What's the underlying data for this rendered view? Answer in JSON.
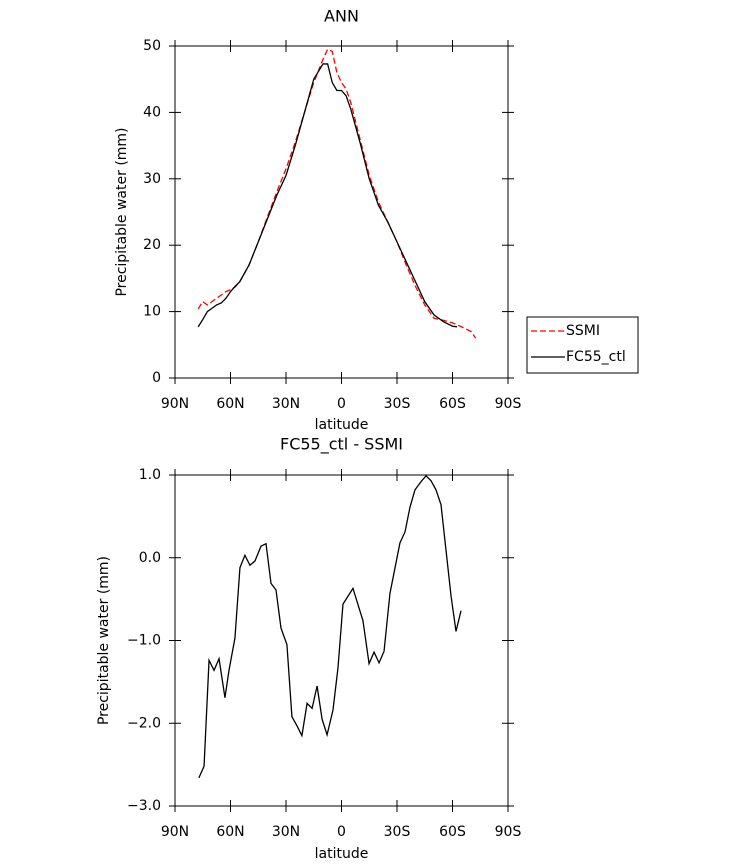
{
  "chart_data": [
    {
      "type": "line",
      "title": "ANN",
      "xlabel": "latitude",
      "ylabel": "Precipitable water (mm)",
      "xlim": [
        90,
        -90
      ],
      "ylim": [
        0,
        50
      ],
      "xticks": [
        {
          "value": 90,
          "label": "90N"
        },
        {
          "value": 60,
          "label": "60N"
        },
        {
          "value": 30,
          "label": "30N"
        },
        0,
        {
          "value": -30,
          "label": "30S"
        },
        {
          "value": -60,
          "label": "60S"
        },
        {
          "value": -90,
          "label": "90S"
        }
      ],
      "yticks": [
        0,
        10,
        20,
        30,
        40,
        50
      ],
      "legend": "right",
      "series": [
        {
          "name": "SSMI",
          "color": "#ff0000",
          "line_style": "dashed",
          "x": [
            77.5,
            75,
            72.5,
            70,
            67.5,
            65,
            62.5,
            60,
            57.5,
            55,
            50,
            45,
            40,
            35,
            30,
            25,
            20,
            15,
            10,
            7.5,
            5,
            2.5,
            0,
            -2.5,
            -5,
            -10,
            -15,
            -20,
            -25,
            -30,
            -35,
            -40,
            -45,
            -50,
            -55,
            -60,
            -65,
            -70,
            -72.5
          ],
          "values": [
            10.4,
            11.5,
            11.0,
            11.5,
            12,
            12.5,
            13,
            13.3,
            13.7,
            14.5,
            17,
            20.5,
            24.3,
            28,
            31.5,
            35.5,
            40,
            44.5,
            48,
            49.5,
            49.2,
            46,
            44.5,
            43.5,
            41.5,
            36,
            30.5,
            26.5,
            23.5,
            20.5,
            17,
            13.8,
            11,
            9,
            8.7,
            8.3,
            7.7,
            7,
            6
          ]
        },
        {
          "name": "FC55_ctl",
          "color": "#000000",
          "line_style": "solid",
          "x": [
            77.5,
            75,
            72.5,
            70,
            67.5,
            65,
            62.5,
            60,
            57.5,
            55,
            50,
            45,
            40,
            35,
            30,
            25,
            20,
            15,
            10,
            7.5,
            5,
            2.5,
            0,
            -2.5,
            -5,
            -10,
            -15,
            -20,
            -25,
            -30,
            -35,
            -40,
            -45,
            -50,
            -55,
            -60,
            -62.5
          ],
          "values": [
            7.7,
            8.8,
            10,
            10.5,
            11,
            11.3,
            12,
            13,
            13.8,
            14.5,
            17,
            20.5,
            24,
            27.5,
            30.5,
            35,
            40,
            45,
            47.3,
            47.3,
            44.5,
            43.3,
            43.3,
            42.5,
            40.5,
            35.5,
            30,
            26,
            23.5,
            20.5,
            17.5,
            14.5,
            11.5,
            9.5,
            8.5,
            7.8,
            7.7
          ]
        }
      ]
    },
    {
      "type": "line",
      "title": "FC55_ctl - SSMI",
      "xlabel": "latitude",
      "ylabel": "Precipitable water (mm)",
      "xlim": [
        90,
        -90
      ],
      "ylim": [
        -3,
        1
      ],
      "xticks": [
        {
          "value": 90,
          "label": "90N"
        },
        {
          "value": 60,
          "label": "60N"
        },
        {
          "value": 30,
          "label": "30N"
        },
        0,
        {
          "value": -30,
          "label": "30S"
        },
        {
          "value": -60,
          "label": "60S"
        },
        {
          "value": -90,
          "label": "90S"
        }
      ],
      "yticks": [
        {
          "value": -3,
          "label": "−3.0"
        },
        {
          "value": -2,
          "label": "−2.0"
        },
        {
          "value": -1,
          "label": "−1.0"
        },
        {
          "value": 0,
          "label": "0.0"
        },
        {
          "value": 1,
          "label": "1.0"
        }
      ],
      "color": "#000000",
      "x": [
        77.1,
        74.3,
        71.6,
        68.9,
        66.2,
        63,
        60.8,
        57.6,
        54.9,
        52.2,
        49.5,
        46.8,
        43.5,
        40.8,
        38.1,
        35.4,
        32.7,
        29.5,
        26.8,
        24.1,
        21.4,
        18.6,
        15.9,
        13.2,
        10.5,
        7.8,
        4.6,
        1.9,
        -0.8,
        -6.2,
        -11.6,
        -14.9,
        -17.6,
        -20.3,
        -23,
        -26.2,
        -31.6,
        -34.3,
        -37,
        -39.7,
        -43,
        -45.7,
        -48.4,
        -51.1,
        -53.8,
        -56.5,
        -59.2,
        -61.9,
        -64.6
      ],
      "values": [
        -2.66,
        -2.52,
        -1.24,
        -1.36,
        -1.22,
        -1.69,
        -1.36,
        -0.97,
        -0.12,
        0.03,
        -0.09,
        -0.04,
        0.14,
        0.17,
        -0.31,
        -0.39,
        -0.85,
        -1.05,
        -1.92,
        -2.03,
        -2.15,
        -1.76,
        -1.82,
        -1.55,
        -1.95,
        -2.14,
        -1.84,
        -1.33,
        -0.56,
        -0.37,
        -0.76,
        -1.28,
        -1.14,
        -1.27,
        -1.13,
        -0.43,
        0.18,
        0.31,
        0.61,
        0.82,
        0.92,
        0.99,
        0.93,
        0.82,
        0.64,
        0.09,
        -0.46,
        -0.89,
        -0.64
      ]
    }
  ]
}
